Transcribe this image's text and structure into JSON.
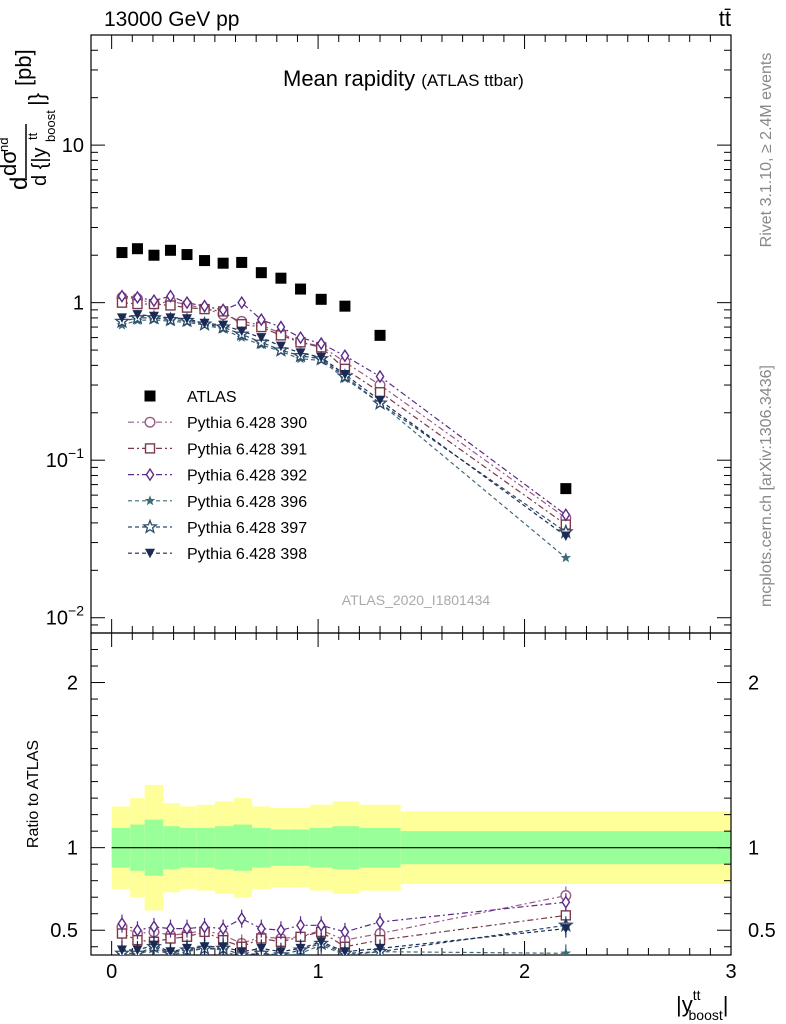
{
  "header": {
    "left": "13000 GeV pp",
    "right": "tt̄"
  },
  "side_labels": {
    "rivet": "Rivet 3.1.10, ≥ 2.4M events",
    "mcplots": "mcplots.cern.ch [arXiv:1306.3436]"
  },
  "chart_data": [
    {
      "type": "scatter",
      "title": "Mean rapidity",
      "subtitle": "(ATLAS ttbar)",
      "watermark": "ATLAS_2020_I1801434",
      "xlabel": "|y^tt_boost|",
      "ylabel": "d dσ^nd / d {|y^tt_boost|} [pb]",
      "xlim": [
        -0.1,
        3.0
      ],
      "ylim": [
        0.008,
        50
      ],
      "yscale": "log",
      "ytick_labels": [
        "10⁻²",
        "10⁻¹",
        "1",
        "10"
      ],
      "legend_position": "left-middle",
      "x": [
        0.05,
        0.125,
        0.205,
        0.285,
        0.365,
        0.45,
        0.54,
        0.63,
        0.725,
        0.82,
        0.915,
        1.015,
        1.13,
        1.3,
        2.2
      ],
      "series": [
        {
          "name": "ATLAS",
          "color": "#000000",
          "marker": "square-filled",
          "values": [
            2.08,
            2.2,
            2.0,
            2.15,
            2.02,
            1.85,
            1.78,
            1.8,
            1.55,
            1.43,
            1.22,
            1.05,
            0.95,
            0.62,
            0.066
          ]
        },
        {
          "name": "Pythia 6.428 390",
          "color": "#9a5b85",
          "marker": "circle-open",
          "dash": "6,3,2,3",
          "values": [
            1.08,
            1.06,
            0.98,
            1.02,
            0.97,
            0.92,
            0.84,
            0.76,
            0.72,
            0.64,
            0.56,
            0.53,
            0.42,
            0.3,
            0.043
          ]
        },
        {
          "name": "Pythia 6.428 391",
          "color": "#7a3a4a",
          "marker": "square-open",
          "dash": "6,3,2,3",
          "values": [
            1.0,
            0.98,
            0.98,
            0.96,
            0.93,
            0.91,
            0.88,
            0.73,
            0.7,
            0.62,
            0.56,
            0.52,
            0.38,
            0.27,
            0.039
          ]
        },
        {
          "name": "Pythia 6.428 392",
          "color": "#5b2a8a",
          "marker": "diamond-open",
          "dash": "6,3,2,3",
          "values": [
            1.1,
            1.08,
            1.03,
            1.1,
            1.0,
            0.95,
            0.9,
            1.0,
            0.78,
            0.7,
            0.6,
            0.55,
            0.46,
            0.34,
            0.045
          ]
        },
        {
          "name": "Pythia 6.428 396",
          "color": "#3d6b7a",
          "marker": "star-filled",
          "dash": "4,3",
          "values": [
            0.72,
            0.77,
            0.78,
            0.76,
            0.75,
            0.72,
            0.68,
            0.6,
            0.54,
            0.49,
            0.44,
            0.43,
            0.33,
            0.23,
            0.024
          ]
        },
        {
          "name": "Pythia 6.428 397",
          "color": "#2a4a6a",
          "marker": "star-open",
          "dash": "4,3",
          "values": [
            0.76,
            0.8,
            0.8,
            0.78,
            0.77,
            0.73,
            0.7,
            0.63,
            0.56,
            0.5,
            0.46,
            0.44,
            0.34,
            0.23,
            0.035
          ]
        },
        {
          "name": "Pythia 6.428 398",
          "color": "#1a2a55",
          "marker": "triangle-down-filled",
          "dash": "4,3",
          "values": [
            0.8,
            0.84,
            0.82,
            0.8,
            0.79,
            0.74,
            0.72,
            0.66,
            0.6,
            0.53,
            0.48,
            0.45,
            0.35,
            0.24,
            0.033
          ]
        }
      ]
    },
    {
      "type": "scatter",
      "ylabel": "Ratio to ATLAS",
      "xlabel": "|y^tt_boost|",
      "xlim": [
        -0.1,
        3.0
      ],
      "ylim": [
        0.35,
        2.3
      ],
      "xtick_labels": [
        "0",
        "1",
        "2",
        "3"
      ],
      "ytick_labels": [
        "0.5",
        "1",
        "2"
      ],
      "bands": {
        "bin_edges": [
          0.0,
          0.09,
          0.16,
          0.25,
          0.33,
          0.41,
          0.5,
          0.59,
          0.68,
          0.77,
          0.86,
          0.96,
          1.07,
          1.2,
          1.4,
          3.0
        ],
        "inner_color": "#99ff99",
        "outer_color": "#ffff99",
        "inner_low": [
          0.88,
          0.86,
          0.83,
          0.87,
          0.88,
          0.88,
          0.87,
          0.86,
          0.88,
          0.89,
          0.89,
          0.88,
          0.87,
          0.88,
          0.9
        ],
        "inner_high": [
          1.12,
          1.14,
          1.17,
          1.13,
          1.12,
          1.12,
          1.13,
          1.14,
          1.12,
          1.11,
          1.11,
          1.12,
          1.13,
          1.12,
          1.1
        ],
        "outer_low": [
          0.75,
          0.7,
          0.62,
          0.73,
          0.75,
          0.74,
          0.72,
          0.7,
          0.75,
          0.76,
          0.76,
          0.74,
          0.72,
          0.74,
          0.78
        ],
        "outer_high": [
          1.25,
          1.3,
          1.38,
          1.27,
          1.25,
          1.26,
          1.28,
          1.3,
          1.25,
          1.24,
          1.24,
          1.26,
          1.28,
          1.26,
          1.22
        ]
      },
      "x": [
        0.05,
        0.125,
        0.205,
        0.285,
        0.365,
        0.45,
        0.54,
        0.63,
        0.725,
        0.82,
        0.915,
        1.015,
        1.13,
        1.3,
        2.2
      ],
      "series": [
        {
          "name": "Pythia 6.428 390",
          "color": "#9a5b85",
          "marker": "circle-open",
          "dash": "6,3,2,3",
          "values": [
            0.52,
            0.48,
            0.49,
            0.47,
            0.48,
            0.5,
            0.47,
            0.42,
            0.46,
            0.45,
            0.46,
            0.5,
            0.44,
            0.48,
            0.71
          ]
        },
        {
          "name": "Pythia 6.428 391",
          "color": "#7a3a4a",
          "marker": "square-open",
          "dash": "6,3,2,3",
          "values": [
            0.48,
            0.44,
            0.43,
            0.45,
            0.46,
            0.49,
            0.44,
            0.4,
            0.45,
            0.43,
            0.46,
            0.49,
            0.4,
            0.44,
            0.59
          ]
        },
        {
          "name": "Pythia 6.428 392",
          "color": "#5b2a8a",
          "marker": "diamond-open",
          "dash": "6,3,2,3",
          "values": [
            0.54,
            0.5,
            0.52,
            0.51,
            0.51,
            0.52,
            0.51,
            0.57,
            0.51,
            0.5,
            0.53,
            0.53,
            0.49,
            0.55,
            0.67
          ]
        },
        {
          "name": "Pythia 6.428 396",
          "color": "#3d6b7a",
          "marker": "star-filled",
          "dash": "4,3",
          "values": [
            0.35,
            0.35,
            0.39,
            0.35,
            0.37,
            0.39,
            0.38,
            0.33,
            0.35,
            0.34,
            0.36,
            0.41,
            0.35,
            0.37,
            0.36
          ]
        },
        {
          "name": "Pythia 6.428 397",
          "color": "#2a4a6a",
          "marker": "star-open",
          "dash": "4,3",
          "values": [
            0.36,
            0.36,
            0.4,
            0.36,
            0.38,
            0.39,
            0.39,
            0.35,
            0.36,
            0.35,
            0.38,
            0.42,
            0.36,
            0.37,
            0.53
          ]
        },
        {
          "name": "Pythia 6.428 398",
          "color": "#1a2a55",
          "marker": "triangle-down-filled",
          "dash": "4,3",
          "values": [
            0.38,
            0.38,
            0.41,
            0.37,
            0.39,
            0.4,
            0.4,
            0.37,
            0.39,
            0.37,
            0.39,
            0.43,
            0.37,
            0.39,
            0.51
          ]
        }
      ]
    }
  ]
}
